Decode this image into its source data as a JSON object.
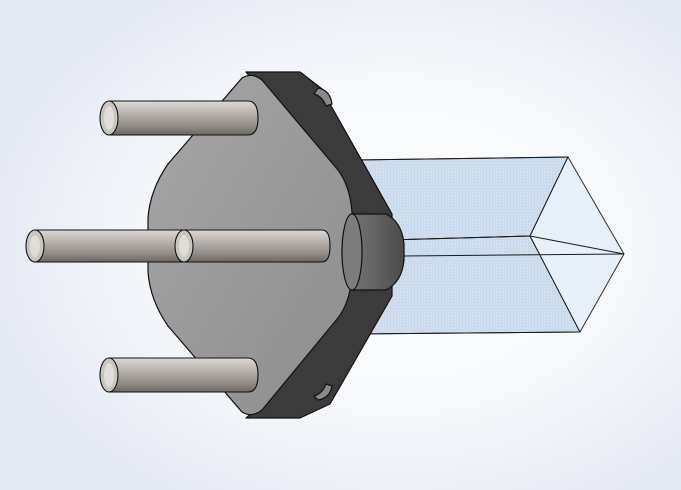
{
  "scene": {
    "background": {
      "edge": "#e4e8f2",
      "center": "#ffffff"
    },
    "colors": {
      "flange_face": "#9a9a9a",
      "flange_face_light": "#b4b4b4",
      "flange_side": "#3a3a3a",
      "flange_side_dark": "#2a2a2a",
      "pin_light": "#d8d4cf",
      "pin_mid": "#a8a39e",
      "pin_dark": "#6e6a66",
      "pin_end": "#c9c5c1",
      "boss": "#6a6a6a",
      "boss_dark": "#4a4a4a",
      "tube_fill": "#cfe0f2",
      "tube_fill_light": "#e6eef8",
      "tube_edge": "#1a1a1a",
      "outline": "#111111"
    }
  }
}
